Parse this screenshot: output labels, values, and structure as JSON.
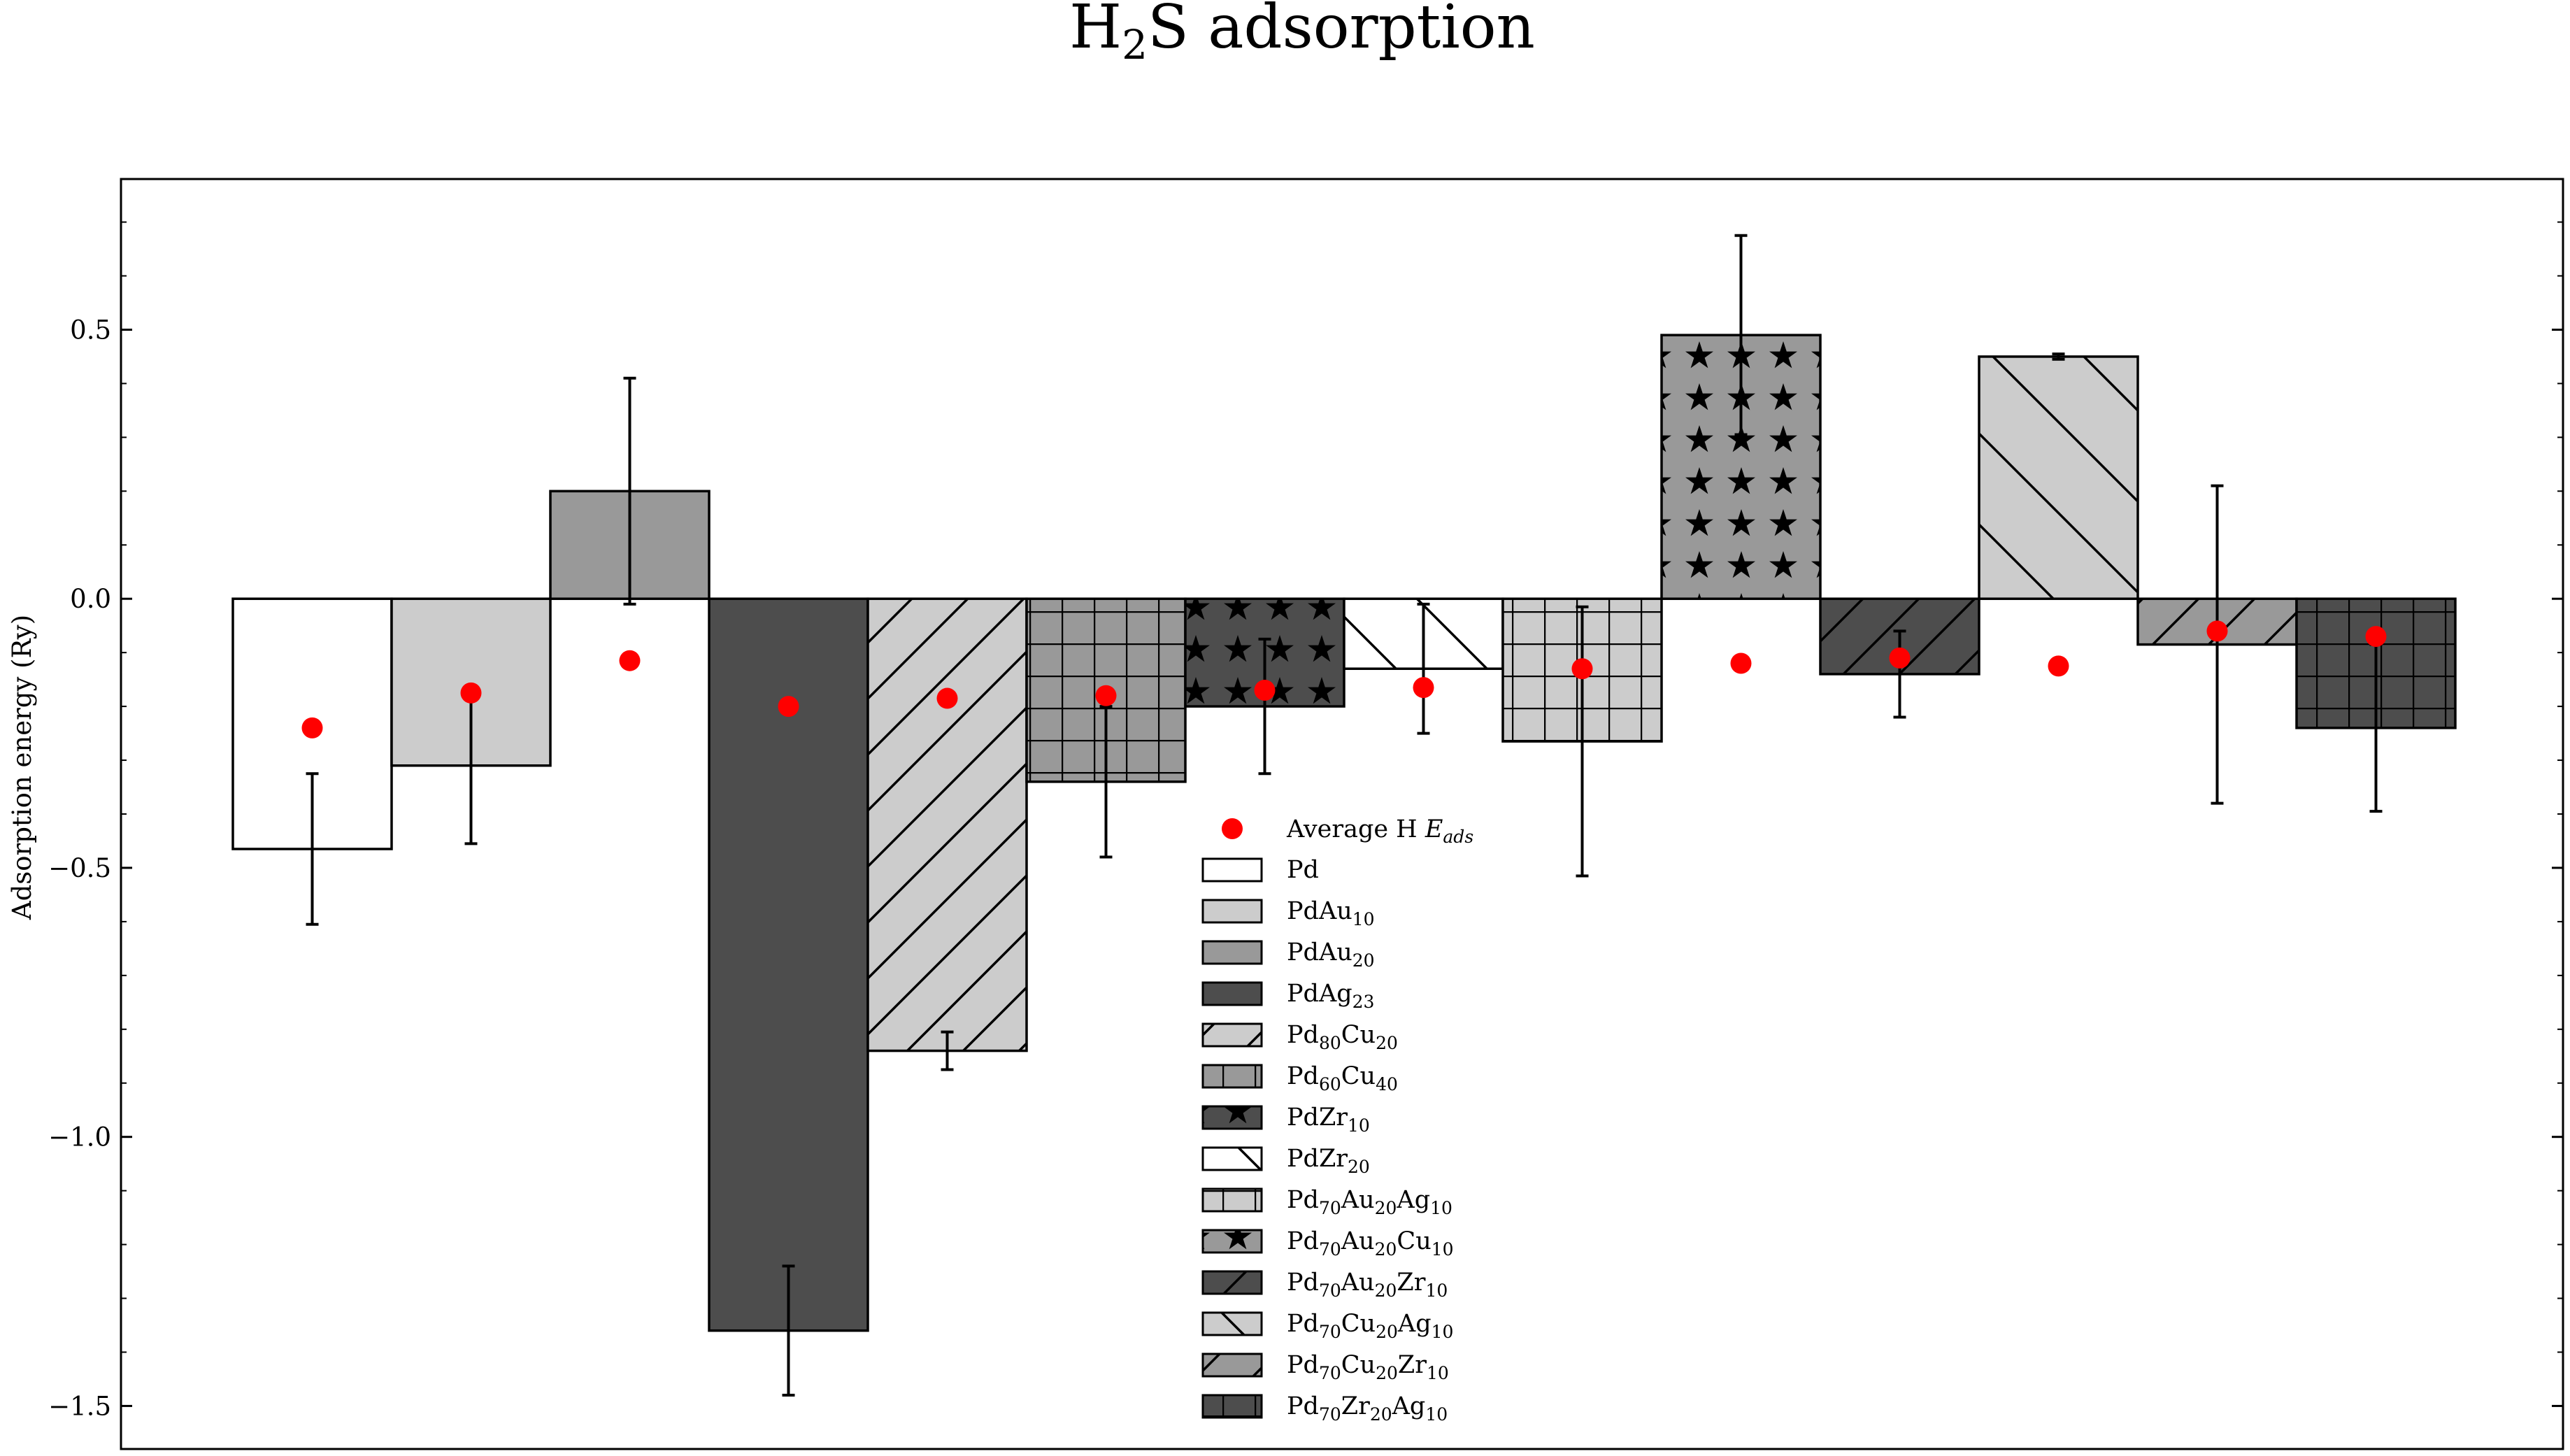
{
  "chart_data": {
    "type": "bar",
    "title": "H₂S adsorption",
    "xlabel": "",
    "ylabel": "Adsorption energy (Ry)",
    "ylim": [
      -1.58,
      0.78
    ],
    "yticks": [
      {
        "value": 0.5,
        "label": "0.5"
      },
      {
        "value": 0.0,
        "label": "0.0"
      },
      {
        "value": -0.5,
        "label": "−0.5"
      },
      {
        "value": -1.0,
        "label": "−1.0"
      },
      {
        "value": -1.5,
        "label": "−1.5"
      }
    ],
    "grid": false,
    "legend_position": "lower-center",
    "bars": [
      {
        "label": "Pd",
        "value": -0.465,
        "err": 0.14,
        "h_avg": -0.24,
        "fill": "#ffffff",
        "hatch": "none"
      },
      {
        "label": "PdAu₁₀",
        "value": -0.31,
        "err": 0.145,
        "h_avg": -0.175,
        "fill": "#cccccc",
        "hatch": "none"
      },
      {
        "label": "PdAu₂₀",
        "value": 0.2,
        "err": 0.21,
        "h_avg": -0.115,
        "fill": "#999999",
        "hatch": "none"
      },
      {
        "label": "PdAg₂₃",
        "value": -1.36,
        "err": 0.12,
        "h_avg": -0.2,
        "fill": "#4d4d4d",
        "hatch": "none"
      },
      {
        "label": "Pd₈₀Cu₂₀",
        "value": -0.84,
        "err": 0.035,
        "h_avg": -0.185,
        "fill": "#cccccc",
        "hatch": "diag"
      },
      {
        "label": "Pd₆₀Cu₄₀",
        "value": -0.34,
        "err": 0.14,
        "h_avg": -0.18,
        "fill": "#999999",
        "hatch": "grid"
      },
      {
        "label": "PdZr₁₀",
        "value": -0.2,
        "err": 0.125,
        "h_avg": -0.17,
        "fill": "#4d4d4d",
        "hatch": "star"
      },
      {
        "label": "PdZr₂₀",
        "value": -0.13,
        "err": 0.12,
        "h_avg": -0.165,
        "fill": "#ffffff",
        "hatch": "backdiag"
      },
      {
        "label": "Pd₇₀Au₂₀Ag₁₀",
        "value": -0.265,
        "err": 0.25,
        "h_avg": -0.13,
        "fill": "#cccccc",
        "hatch": "grid"
      },
      {
        "label": "Pd₇₀Au₂₀Cu₁₀",
        "value": 0.49,
        "err": 0.185,
        "h_avg": -0.12,
        "fill": "#999999",
        "hatch": "star"
      },
      {
        "label": "Pd₇₀Au₂₀Zr₁₀",
        "value": -0.14,
        "err": 0.08,
        "h_avg": -0.11,
        "fill": "#4d4d4d",
        "hatch": "diag"
      },
      {
        "label": "Pd₇₀Cu₂₀Ag₁₀",
        "value": 0.45,
        "err": 0.005,
        "h_avg": -0.125,
        "fill": "#cccccc",
        "hatch": "backdiag"
      },
      {
        "label": "Pd₇₀Cu₂₀Zr₁₀",
        "value": -0.085,
        "err": 0.295,
        "h_avg": -0.06,
        "fill": "#999999",
        "hatch": "diag"
      },
      {
        "label": "Pd₇₀Zr₂₀Ag₁₀",
        "value": -0.24,
        "err": 0.155,
        "h_avg": -0.07,
        "fill": "#4d4d4d",
        "hatch": "grid"
      }
    ],
    "scatter_series": {
      "name": "Average H Eads",
      "color": "#ff0000"
    }
  }
}
